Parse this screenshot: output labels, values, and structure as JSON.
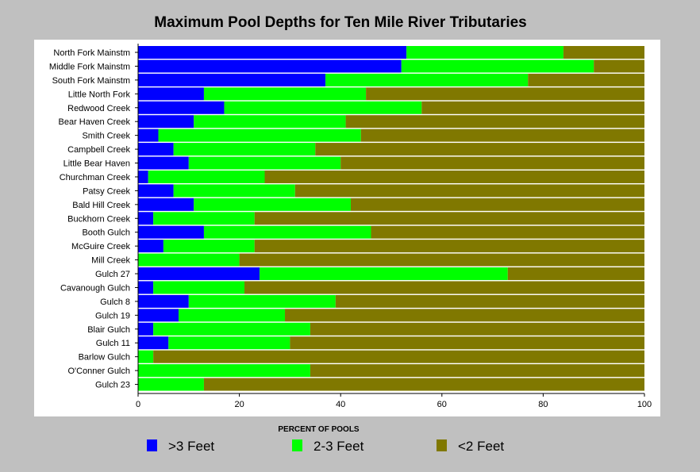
{
  "chart_data": {
    "type": "bar",
    "orientation": "horizontal",
    "stacked": true,
    "title": "Maximum Pool Depths for Ten Mile River Tributaries",
    "xlabel": "PERCENT OF POOLS",
    "ylabel": "",
    "xlim": [
      0,
      100
    ],
    "xticks": [
      "0",
      "20",
      "40",
      "60",
      "80",
      "100"
    ],
    "grid": false,
    "legend_position": "bottom",
    "categories": [
      "North Fork Mainstm",
      "Middle Fork Mainstm",
      "South Fork Mainstm",
      "Little North Fork",
      "Redwood Creek",
      "Bear Haven Creek",
      "Smith Creek",
      "Campbell Creek",
      "Little Bear Haven",
      "Churchman Creek",
      "Patsy Creek",
      "Bald Hill Creek",
      "Buckhorn Creek",
      "Booth Gulch",
      "McGuire Creek",
      "Mill Creek",
      "Gulch 27",
      "Cavanough Gulch",
      "Gulch 8",
      "Gulch 19",
      "Blair Gulch",
      "Gulch 11",
      "Barlow Gulch",
      "O'Conner Gulch",
      "Gulch 23"
    ],
    "series": [
      {
        "name": ">3 Feet",
        "color": "#0000ff",
        "values": [
          53,
          52,
          37,
          13,
          17,
          11,
          4,
          7,
          10,
          2,
          7,
          11,
          3,
          13,
          5,
          0,
          24,
          3,
          10,
          8,
          3,
          6,
          0,
          0,
          0
        ]
      },
      {
        "name": "2-3 Feet",
        "color": "#00ff00",
        "values": [
          31,
          38,
          40,
          32,
          39,
          30,
          40,
          28,
          30,
          23,
          24,
          31,
          20,
          33,
          18,
          20,
          49,
          18,
          29,
          21,
          31,
          24,
          3,
          34,
          13
        ]
      },
      {
        "name": "<2 Feet",
        "color": "#807800",
        "values": [
          16,
          10,
          23,
          55,
          44,
          59,
          56,
          65,
          60,
          75,
          69,
          58,
          77,
          54,
          77,
          80,
          27,
          79,
          61,
          71,
          66,
          70,
          97,
          66,
          87
        ]
      }
    ]
  }
}
